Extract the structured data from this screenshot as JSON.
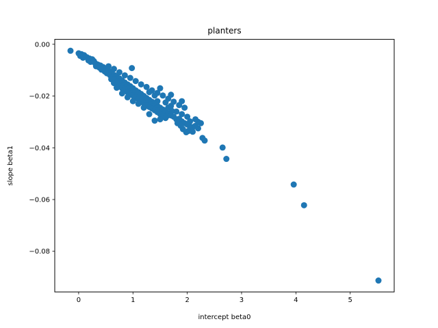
{
  "chart_data": {
    "type": "scatter",
    "title": "planters",
    "xlabel": "intercept beta0",
    "ylabel": "slope beta1",
    "xlim": [
      -0.44,
      5.81
    ],
    "ylim": [
      -0.0957,
      0.0019
    ],
    "xticks": [
      0,
      1,
      2,
      3,
      4,
      5
    ],
    "yticks": [
      0.0,
      -0.02,
      -0.04,
      -0.06,
      -0.08
    ],
    "ytick_labels": [
      "0.00",
      "−0.02",
      "−0.04",
      "−0.06",
      "−0.08"
    ],
    "xtick_labels": [
      "0",
      "1",
      "2",
      "3",
      "4",
      "5"
    ],
    "grid": false,
    "marker_color": "#1f77b4",
    "points": [
      [
        -0.15,
        -0.0025
      ],
      [
        0.0,
        -0.0035
      ],
      [
        0.05,
        -0.0038
      ],
      [
        0.1,
        -0.0042
      ],
      [
        0.03,
        -0.0045
      ],
      [
        0.12,
        -0.0048
      ],
      [
        0.15,
        -0.005
      ],
      [
        0.2,
        -0.0055
      ],
      [
        0.08,
        -0.0052
      ],
      [
        0.18,
        -0.0062
      ],
      [
        0.25,
        -0.0058
      ],
      [
        0.22,
        -0.0068
      ],
      [
        0.3,
        -0.0072
      ],
      [
        0.28,
        -0.0065
      ],
      [
        0.35,
        -0.0078
      ],
      [
        0.32,
        -0.0085
      ],
      [
        0.4,
        -0.0082
      ],
      [
        0.38,
        -0.009
      ],
      [
        0.45,
        -0.0088
      ],
      [
        0.42,
        -0.0098
      ],
      [
        0.5,
        -0.0095
      ],
      [
        0.48,
        -0.0105
      ],
      [
        0.55,
        -0.0102
      ],
      [
        0.52,
        -0.0112
      ],
      [
        0.6,
        -0.011
      ],
      [
        0.58,
        -0.012
      ],
      [
        0.65,
        -0.0118
      ],
      [
        0.62,
        -0.0128
      ],
      [
        0.7,
        -0.0125
      ],
      [
        0.68,
        -0.0135
      ],
      [
        0.75,
        -0.0132
      ],
      [
        0.72,
        -0.0142
      ],
      [
        0.8,
        -0.014
      ],
      [
        0.78,
        -0.015
      ],
      [
        0.85,
        -0.0148
      ],
      [
        0.82,
        -0.0158
      ],
      [
        0.9,
        -0.0155
      ],
      [
        0.88,
        -0.0165
      ],
      [
        0.95,
        -0.0162
      ],
      [
        0.92,
        -0.0172
      ],
      [
        1.0,
        -0.017
      ],
      [
        0.98,
        -0.018
      ],
      [
        1.05,
        -0.0178
      ],
      [
        1.02,
        -0.0188
      ],
      [
        1.1,
        -0.0185
      ],
      [
        1.08,
        -0.0195
      ],
      [
        1.15,
        -0.0192
      ],
      [
        1.12,
        -0.0202
      ],
      [
        1.2,
        -0.02
      ],
      [
        1.18,
        -0.021
      ],
      [
        1.25,
        -0.0208
      ],
      [
        1.22,
        -0.0218
      ],
      [
        1.3,
        -0.0215
      ],
      [
        1.28,
        -0.0225
      ],
      [
        1.35,
        -0.0222
      ],
      [
        1.32,
        -0.0232
      ],
      [
        1.4,
        -0.023
      ],
      [
        1.38,
        -0.024
      ],
      [
        1.45,
        -0.0238
      ],
      [
        1.42,
        -0.0248
      ],
      [
        1.5,
        -0.0245
      ],
      [
        1.48,
        -0.0255
      ],
      [
        1.55,
        -0.0252
      ],
      [
        1.52,
        -0.0262
      ],
      [
        1.6,
        -0.026
      ],
      [
        1.58,
        -0.027
      ],
      [
        1.65,
        -0.0268
      ],
      [
        1.62,
        -0.0278
      ],
      [
        1.7,
        -0.0275
      ],
      [
        1.75,
        -0.028
      ],
      [
        1.8,
        -0.029
      ],
      [
        1.85,
        -0.0288
      ],
      [
        1.9,
        -0.0298
      ],
      [
        1.95,
        -0.0305
      ],
      [
        2.0,
        -0.031
      ],
      [
        2.05,
        -0.0318
      ],
      [
        2.1,
        -0.032
      ],
      [
        2.15,
        -0.0315
      ],
      [
        2.2,
        -0.0325
      ],
      [
        2.25,
        -0.0305
      ],
      [
        2.02,
        -0.0335
      ],
      [
        1.98,
        -0.034
      ],
      [
        2.1,
        -0.0338
      ],
      [
        1.92,
        -0.0328
      ],
      [
        0.6,
        -0.0135
      ],
      [
        0.65,
        -0.015
      ],
      [
        0.7,
        -0.0148
      ],
      [
        0.75,
        -0.0162
      ],
      [
        0.8,
        -0.017
      ],
      [
        0.85,
        -0.0175
      ],
      [
        0.9,
        -0.0185
      ],
      [
        0.95,
        -0.019
      ],
      [
        1.0,
        -0.0198
      ],
      [
        1.05,
        -0.0205
      ],
      [
        1.1,
        -0.0212
      ],
      [
        1.15,
        -0.022
      ],
      [
        1.2,
        -0.0228
      ],
      [
        1.25,
        -0.0235
      ],
      [
        1.3,
        -0.0242
      ],
      [
        1.35,
        -0.0248
      ],
      [
        1.4,
        -0.0255
      ],
      [
        1.45,
        -0.0262
      ],
      [
        1.5,
        -0.027
      ],
      [
        1.55,
        -0.0278
      ],
      [
        1.6,
        -0.0285
      ],
      [
        1.4,
        -0.0295
      ],
      [
        1.5,
        -0.029
      ],
      [
        1.3,
        -0.027
      ],
      [
        0.55,
        -0.0085
      ],
      [
        0.65,
        -0.0095
      ],
      [
        0.75,
        -0.0108
      ],
      [
        0.85,
        -0.012
      ],
      [
        0.95,
        -0.013
      ],
      [
        1.05,
        -0.0142
      ],
      [
        1.15,
        -0.0155
      ],
      [
        1.25,
        -0.0165
      ],
      [
        1.35,
        -0.0178
      ],
      [
        1.45,
        -0.0188
      ],
      [
        1.55,
        -0.0198
      ],
      [
        1.65,
        -0.021
      ],
      [
        1.75,
        -0.0222
      ],
      [
        1.85,
        -0.0235
      ],
      [
        1.95,
        -0.0245
      ],
      [
        0.98,
        -0.0092
      ],
      [
        1.5,
        -0.017
      ],
      [
        1.7,
        -0.0195
      ],
      [
        1.9,
        -0.022
      ],
      [
        1.8,
        -0.026
      ],
      [
        2.0,
        -0.028
      ],
      [
        1.9,
        -0.027
      ],
      [
        2.2,
        -0.03
      ],
      [
        1.65,
        -0.0245
      ],
      [
        1.72,
        -0.0258
      ],
      [
        1.2,
        -0.0245
      ],
      [
        1.1,
        -0.023
      ],
      [
        1.0,
        -0.022
      ],
      [
        0.9,
        -0.0205
      ],
      [
        0.8,
        -0.019
      ],
      [
        0.7,
        -0.0168
      ],
      [
        1.3,
        -0.0185
      ],
      [
        1.4,
        -0.0198
      ],
      [
        1.6,
        -0.0225
      ],
      [
        1.7,
        -0.0238
      ],
      [
        1.82,
        -0.0305
      ],
      [
        1.88,
        -0.0315
      ],
      [
        2.05,
        -0.0298
      ],
      [
        2.15,
        -0.029
      ],
      [
        1.45,
        -0.022
      ],
      [
        2.28,
        -0.0362
      ],
      [
        2.32,
        -0.0372
      ],
      [
        2.65,
        -0.0399
      ],
      [
        2.72,
        -0.0443
      ],
      [
        3.96,
        -0.0542
      ],
      [
        4.15,
        -0.0622
      ],
      [
        5.52,
        -0.0913
      ]
    ]
  }
}
